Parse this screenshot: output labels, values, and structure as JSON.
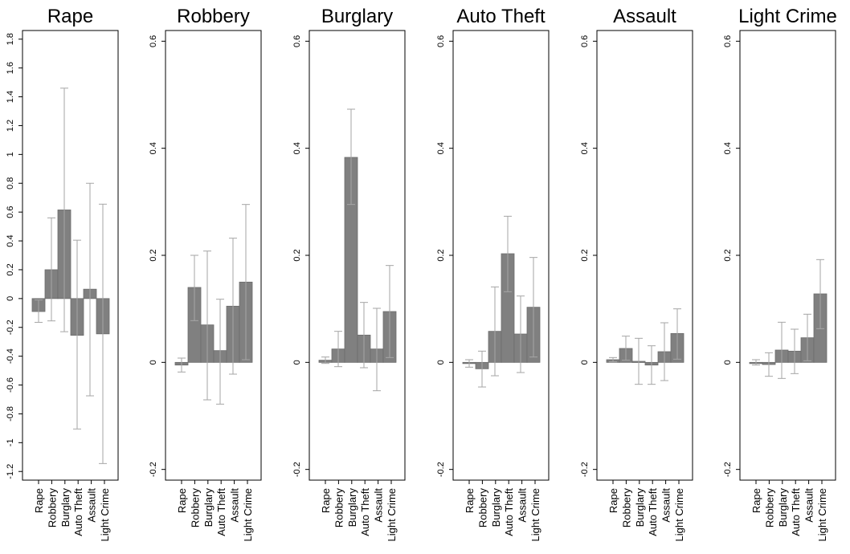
{
  "chart_data": [
    {
      "type": "bar",
      "title": "Rape",
      "categories": [
        "Rape",
        "Robbery",
        "Burglary",
        "Auto Theft",
        "Assault",
        "Light Crime"
      ],
      "values": [
        -0.09,
        0.2,
        0.615,
        -0.255,
        0.065,
        -0.245
      ],
      "ci_low": [
        -0.165,
        -0.155,
        -0.23,
        -0.905,
        -0.675,
        -1.145
      ],
      "ci_high": [
        -0.01,
        0.56,
        1.46,
        0.405,
        0.8,
        0.655
      ],
      "yticks": [
        "-1.2",
        "-1",
        "-0.8",
        "-0.6",
        "-0.4",
        "-0.2",
        "0",
        "0.2",
        "0.4",
        "0.6",
        "0.8",
        "1",
        "1.2",
        "1.4",
        "1.6",
        "1.8"
      ],
      "ylim": [
        -1.26,
        1.86
      ],
      "xlabel": "",
      "ylabel": "",
      "grid": false
    },
    {
      "type": "bar",
      "title": "Robbery",
      "categories": [
        "Rape",
        "Robbery",
        "Burglary",
        "Auto Theft",
        "Assault",
        "Light Crime"
      ],
      "values": [
        -0.005,
        0.14,
        0.07,
        0.022,
        0.105,
        0.15
      ],
      "ci_low": [
        -0.018,
        0.078,
        -0.07,
        -0.078,
        -0.022,
        0.005
      ],
      "ci_high": [
        0.008,
        0.2,
        0.208,
        0.118,
        0.232,
        0.295
      ],
      "yticks": [
        "-0.2",
        "0",
        "0.2",
        "0.4",
        "0.6"
      ],
      "ylim": [
        -0.22,
        0.62
      ],
      "xlabel": "",
      "ylabel": "",
      "grid": false
    },
    {
      "type": "bar",
      "title": "Burglary",
      "categories": [
        "Rape",
        "Robbery",
        "Burglary",
        "Auto Theft",
        "Assault",
        "Light Crime"
      ],
      "values": [
        0.004,
        0.025,
        0.383,
        0.051,
        0.025,
        0.095
      ],
      "ci_low": [
        -0.002,
        -0.008,
        0.295,
        -0.01,
        -0.053,
        0.009
      ],
      "ci_high": [
        0.01,
        0.058,
        0.473,
        0.112,
        0.101,
        0.181
      ],
      "yticks": [
        "-0.2",
        "0",
        "0.2",
        "0.4",
        "0.6"
      ],
      "ylim": [
        -0.22,
        0.62
      ],
      "xlabel": "",
      "ylabel": "",
      "grid": false
    },
    {
      "type": "bar",
      "title": "Auto Theft",
      "categories": [
        "Rape",
        "Robbery",
        "Burglary",
        "Auto Theft",
        "Assault",
        "Light Crime"
      ],
      "values": [
        -0.002,
        -0.012,
        0.058,
        0.203,
        0.053,
        0.103
      ],
      "ci_low": [
        -0.009,
        -0.046,
        -0.025,
        0.132,
        -0.019,
        0.01
      ],
      "ci_high": [
        0.005,
        0.021,
        0.141,
        0.273,
        0.124,
        0.196
      ],
      "yticks": [
        "-0.2",
        "0",
        "0.2",
        "0.4",
        "0.6"
      ],
      "ylim": [
        -0.22,
        0.62
      ],
      "xlabel": "",
      "ylabel": "",
      "grid": false
    },
    {
      "type": "bar",
      "title": "Assault",
      "categories": [
        "Rape",
        "Robbery",
        "Burglary",
        "Auto Theft",
        "Assault",
        "Light Crime"
      ],
      "values": [
        0.005,
        0.026,
        0.002,
        -0.005,
        0.02,
        0.054
      ],
      "ci_low": [
        0.001,
        0.004,
        -0.041,
        -0.041,
        -0.034,
        0.006
      ],
      "ci_high": [
        0.009,
        0.049,
        0.045,
        0.031,
        0.074,
        0.1
      ],
      "yticks": [
        "-0.2",
        "0",
        "0.2",
        "0.4",
        "0.6"
      ],
      "ylim": [
        -0.22,
        0.62
      ],
      "xlabel": "",
      "ylabel": "",
      "grid": false
    },
    {
      "type": "bar",
      "title": "Light Crime",
      "categories": [
        "Rape",
        "Robbery",
        "Burglary",
        "Auto Theft",
        "Assault",
        "Light Crime"
      ],
      "values": [
        0.0,
        -0.004,
        0.023,
        0.021,
        0.046,
        0.128
      ],
      "ci_low": [
        -0.005,
        -0.026,
        -0.03,
        -0.021,
        0.003,
        0.063
      ],
      "ci_high": [
        0.005,
        0.018,
        0.075,
        0.062,
        0.09,
        0.192
      ],
      "yticks": [
        "-0.2",
        "0",
        "0.2",
        "0.4",
        "0.6"
      ],
      "ylim": [
        -0.22,
        0.62
      ],
      "xlabel": "",
      "ylabel": "",
      "grid": false
    }
  ],
  "style": {
    "bar_fill": "#808080",
    "bar_stroke": "#6b6b6b",
    "error_bar": "#a6a6a6",
    "frame": "#000000",
    "background": "#ffffff"
  }
}
